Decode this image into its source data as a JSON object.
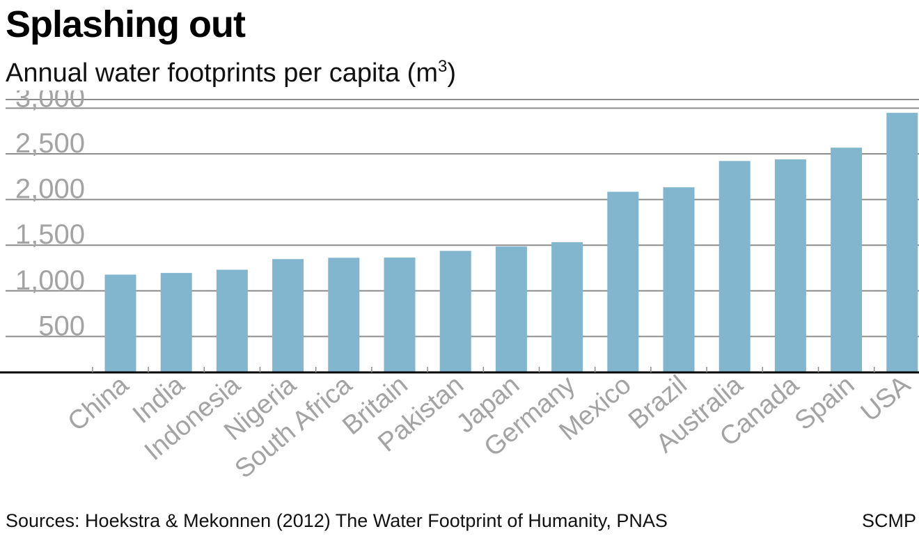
{
  "header": {
    "title": "Splashing out",
    "subtitle": "Annual water footprints per capita (m",
    "subtitle_sup": "3",
    "subtitle_end": ")"
  },
  "footer": {
    "source": "Sources: Hoekstra & Mekonnen (2012) The Water Footprint of Humanity, PNAS",
    "credit": "SCMP"
  },
  "colors": {
    "bar": "#82b6cf",
    "grid": "#8c8c8c",
    "baseline": "#000000",
    "tick_label": "#a3a3a3"
  },
  "chart_data": {
    "type": "bar",
    "title": "Splashing out",
    "subtitle": "Annual water footprints per capita (m3)",
    "categories": [
      "China",
      "India",
      "Indonesia",
      "Nigeria",
      "South Africa",
      "Britain",
      "Pakistan",
      "Japan",
      "Germany",
      "Mexico",
      "Brazil",
      "Australia",
      "Canada",
      "Spain",
      "USA"
    ],
    "values": [
      1071,
      1089,
      1124,
      1241,
      1255,
      1258,
      1331,
      1379,
      1426,
      1978,
      2027,
      2315,
      2333,
      2461,
      2842
    ],
    "yticks": [
      500,
      1000,
      1500,
      2000,
      2500,
      3000
    ],
    "ytick_labels": [
      "500",
      "1,000",
      "1,500",
      "2,000",
      "2,500",
      "3,000"
    ],
    "ylim": [
      0,
      3000
    ],
    "xlabel": "",
    "ylabel": "",
    "grid": true,
    "legend": "none"
  }
}
